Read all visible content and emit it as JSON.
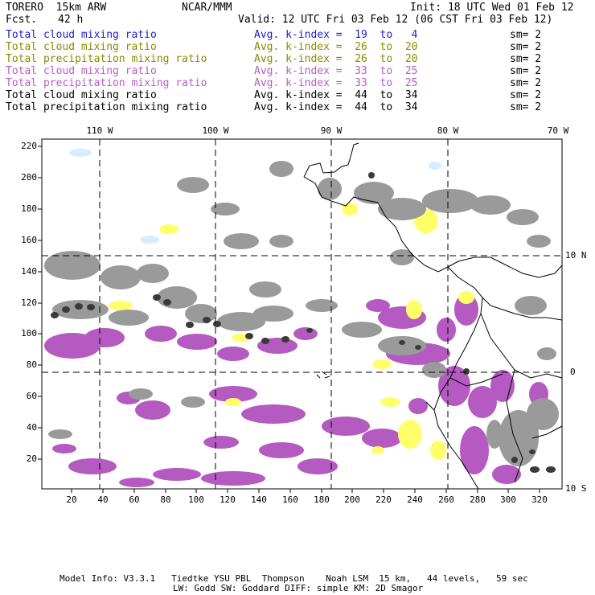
{
  "header": {
    "model": "TORERO  15km ARW",
    "org": "NCAR/MMM",
    "init": "Init: 18 UTC Wed 01 Feb 12",
    "fcst_label": "Fcst.",
    "fcst_value": "42 h",
    "valid": "Valid: 12 UTC Fri 03 Feb 12 (06 CST Fri 03 Feb 12)"
  },
  "legend": [
    {
      "name": "Total cloud mixing ratio",
      "kindex": "Avg. k-index =  19  to   4",
      "sm": "sm= 2",
      "color": "#1e1ec8"
    },
    {
      "name": "Total cloud mixing ratio",
      "kindex": "Avg. k-index =  26  to  20",
      "sm": "sm= 2",
      "color": "#8a8a00"
    },
    {
      "name": "Total precipitation mixing ratio",
      "kindex": "Avg. k-index =  26  to  20",
      "sm": "sm= 2",
      "color": "#8a8a00"
    },
    {
      "name": "Total cloud mixing ratio",
      "kindex": "Avg. k-index =  33  to  25",
      "sm": "sm= 2",
      "color": "#b85cc8"
    },
    {
      "name": "Total precipitation mixing ratio",
      "kindex": "Avg. k-index =  33  to  25",
      "sm": "sm= 2",
      "color": "#b85cc8"
    },
    {
      "name": "Total cloud mixing ratio",
      "kindex": "Avg. k-index =  44  to  34",
      "sm": "sm= 2",
      "color": "#000000"
    },
    {
      "name": "Total precipitation mixing ratio",
      "kindex": "Avg. k-index =  44  to  34",
      "sm": "sm= 2",
      "color": "#000000"
    }
  ],
  "axes": {
    "y_ticks": [
      "220",
      "200",
      "180",
      "160",
      "140",
      "120",
      "100",
      "80",
      "60",
      "40",
      "20"
    ],
    "x_ticks": [
      "20",
      "40",
      "60",
      "80",
      "100",
      "120",
      "140",
      "160",
      "180",
      "200",
      "220",
      "240",
      "260",
      "280",
      "300",
      "320"
    ],
    "lon_labels": [
      "110 W",
      "100 W",
      "90 W",
      "80 W",
      "70 W"
    ],
    "lat_labels": [
      "10 N",
      "0",
      "10 S"
    ]
  },
  "colors": {
    "cloud_gray": "#9a9a9a",
    "dark_core": "#3a3a3a",
    "yellow": "#ffff6a",
    "purple": "#b45ac0",
    "light_blue": "#d8ecff"
  },
  "footer": {
    "line1": "Model Info: V3.3.1   Tiedtke YSU PBL  Thompson    Noah LSM  15 km,   44 levels,   59 sec",
    "line2": "LW: Godd SW: Goddard DIFF: simple KM: 2D Smagor"
  }
}
